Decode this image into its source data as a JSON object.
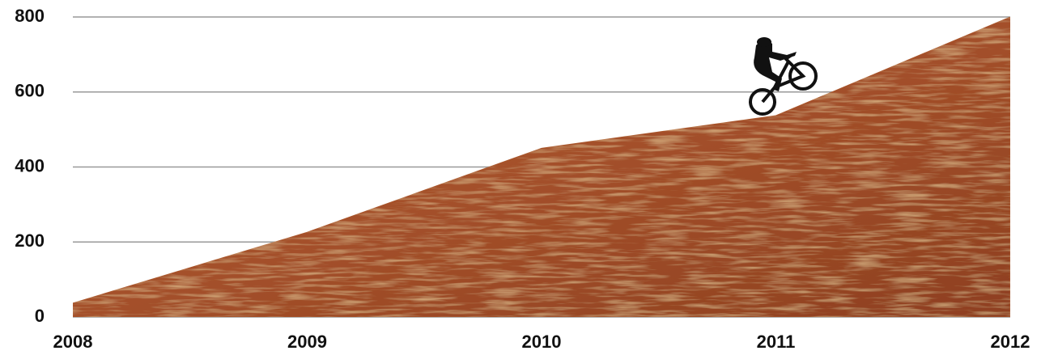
{
  "chart_data": {
    "type": "area",
    "x": [
      2008,
      2009,
      2010,
      2011,
      2012
    ],
    "values": [
      37,
      226,
      450,
      537,
      800
    ],
    "color": "#a9542a",
    "xlim": [
      2008,
      2012
    ],
    "xticks": [
      2008,
      2009,
      2010,
      2011,
      2012
    ],
    "ylim": [
      0,
      800
    ],
    "yticks": [
      0,
      200,
      400,
      600,
      800
    ],
    "grid": true
  }
}
